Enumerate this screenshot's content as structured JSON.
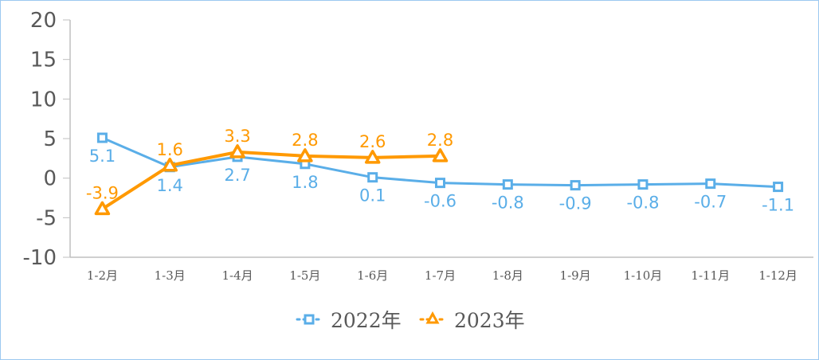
{
  "chart_data": {
    "type": "line",
    "categories": [
      "1-2月",
      "1-3月",
      "1-4月",
      "1-5月",
      "1-6月",
      "1-7月",
      "1-8月",
      "1-9月",
      "1-10月",
      "1-11月",
      "1-12月"
    ],
    "ylim": [
      -10,
      20
    ],
    "yticks": [
      -10,
      -5,
      0,
      5,
      10,
      15,
      20
    ],
    "grid": false,
    "legend": "bottom",
    "series": [
      {
        "name": "2022年",
        "color": "#5aaee8",
        "marker": "square",
        "label_position": "below",
        "values": [
          5.1,
          1.4,
          2.7,
          1.8,
          0.1,
          -0.6,
          -0.8,
          -0.9,
          -0.8,
          -0.7,
          -1.1
        ]
      },
      {
        "name": "2023年",
        "color": "#ff9900",
        "marker": "triangle",
        "label_position": "above",
        "values": [
          -3.9,
          1.6,
          3.3,
          2.8,
          2.6,
          2.8,
          null,
          null,
          null,
          null,
          null
        ]
      }
    ]
  }
}
